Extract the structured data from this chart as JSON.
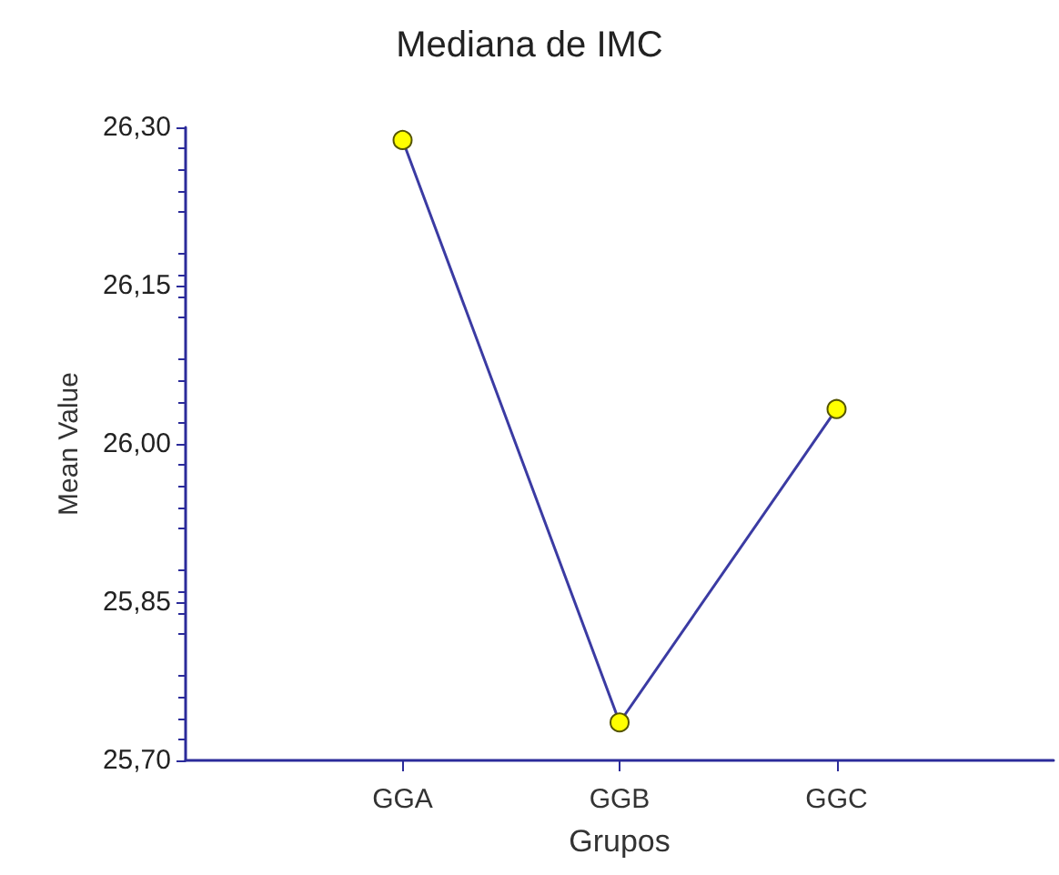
{
  "chart_data": {
    "type": "line",
    "title": "Mediana de IMC",
    "xlabel": "Grupos",
    "ylabel": "Mean Value",
    "categories": [
      null,
      "GGA",
      "GGB",
      "GGC",
      null
    ],
    "series": [
      {
        "color": "#3b3ba3",
        "colors": [
          null,
          "#ffff00",
          "#ffff00",
          "#ffff00",
          null
        ],
        "values": [
          null,
          26.288,
          25.736,
          26.033,
          null
        ]
      }
    ],
    "ylim": [
      25.7,
      26.3
    ],
    "yticks": [
      {
        "value": 25.7,
        "label": "25,70"
      },
      {
        "value": 25.85,
        "label": "25,85"
      },
      {
        "value": 26.0,
        "label": "26,00"
      },
      {
        "value": 26.15,
        "label": "26,15"
      },
      {
        "value": 26.3,
        "label": "26,30"
      }
    ],
    "grid": false,
    "marker": "circle",
    "line_style": "solid"
  }
}
